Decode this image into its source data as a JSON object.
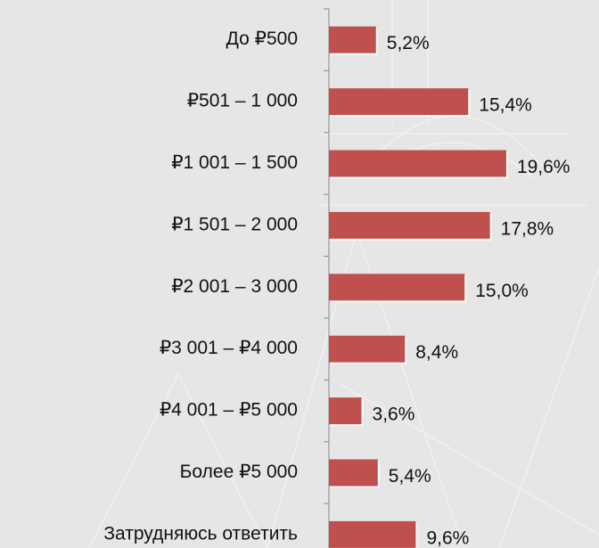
{
  "chart_data": {
    "type": "bar",
    "orientation": "horizontal",
    "categories": [
      "До ₽500",
      "₽501 – 1 000",
      "₽1 001 – 1 500",
      "₽1 501 – 2 000",
      "₽2 001 – 3 000",
      "₽3 001 – ₽4 000",
      "₽4 001 – ₽5 000",
      "Более ₽5 000",
      "Затрудняюсь ответить"
    ],
    "values": [
      5.2,
      15.4,
      19.6,
      17.8,
      15.0,
      8.4,
      3.6,
      5.4,
      9.6
    ],
    "value_labels": [
      "5,2%",
      "15,4%",
      "19,6%",
      "17,8%",
      "15,0%",
      "8,4%",
      "3,6%",
      "5,4%",
      "9,6%"
    ],
    "color": "#c0504d"
  }
}
